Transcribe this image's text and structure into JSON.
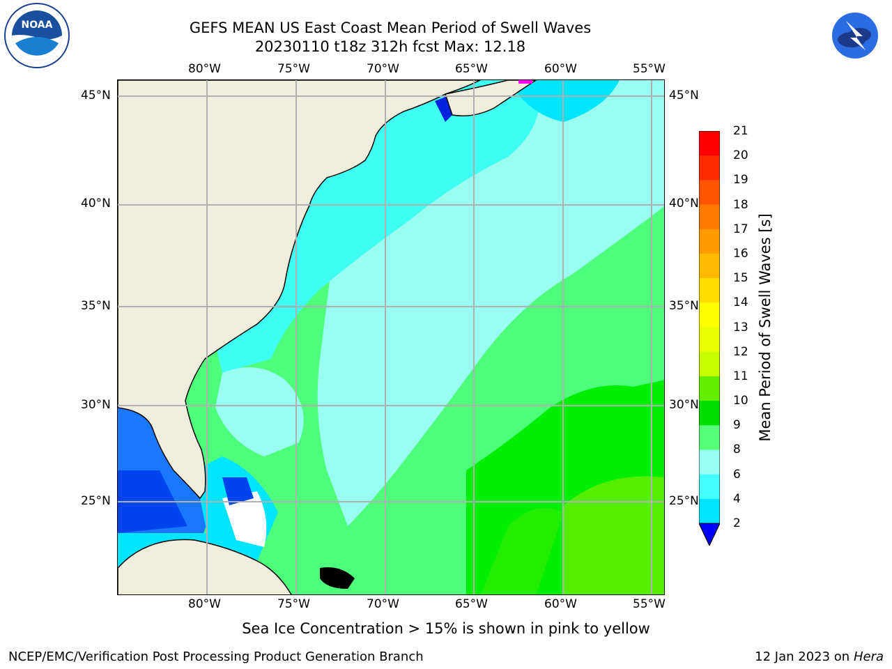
{
  "header": {
    "title_line1": "GEFS MEAN US East Coast Mean Period of Swell Waves",
    "title_line2": "20230110 t18z 312h fcst   Max: 12.18"
  },
  "logos": {
    "left_name": "NOAA",
    "right_name": "NATIONAL WEATHER SERVICE"
  },
  "map": {
    "lon_labels": [
      "80°W",
      "75°W",
      "70°W",
      "65°W",
      "60°W",
      "55°W"
    ],
    "lat_labels": [
      "45°N",
      "40°N",
      "35°N",
      "30°N",
      "25°N"
    ],
    "colors": {
      "land": "#efeddb",
      "grid": "#b0b0b0",
      "coast": "#000000"
    },
    "palette": {
      "2": "#0055ff",
      "4": "#00e5ff",
      "6": "#3dfff2",
      "8": "#99fff0",
      "9": "#4dff7a",
      "10": "#00ee00",
      "11": "#55ee00"
    }
  },
  "colorbar": {
    "ticks": [
      "21",
      "20",
      "19",
      "18",
      "17",
      "16",
      "15",
      "14",
      "13",
      "12",
      "11",
      "10",
      "9",
      "8",
      "6",
      "4",
      "2"
    ],
    "colors": [
      "#ff0000",
      "#ff2a00",
      "#ff5500",
      "#ff7a00",
      "#ff9a00",
      "#ffbb00",
      "#ffdd00",
      "#ffff00",
      "#eaff00",
      "#c8ff00",
      "#88ff00",
      "#00dd00",
      "#00ff00",
      "#66ff99",
      "#99fff5",
      "#44ffff",
      "#00e5ff",
      "#0077ff",
      "#0000ff"
    ],
    "label": "Mean Period of Swell Waves [s]"
  },
  "notes": {
    "sea_ice": "Sea Ice Concentration > 15% is shown in pink to yellow"
  },
  "footer": {
    "left": "NCEP/EMC/Verification Post Processing Product Generation Branch",
    "right_date": "12 Jan 2023 on ",
    "right_host": "Hera"
  }
}
